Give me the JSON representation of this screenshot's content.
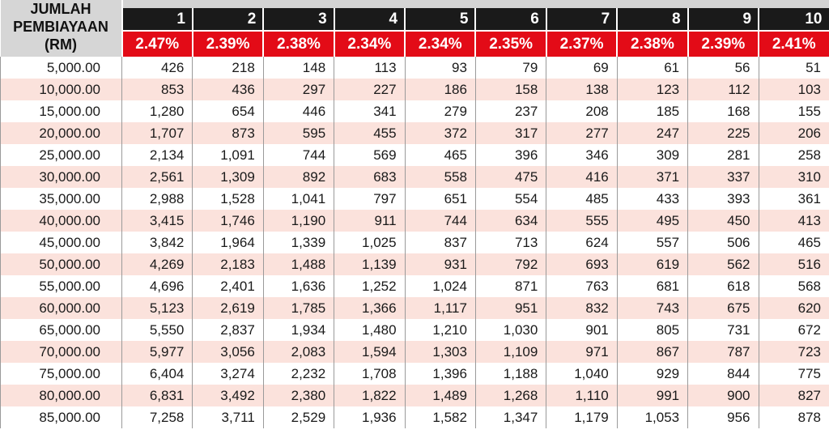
{
  "header": {
    "label_lines": [
      "JUMLAH",
      "PEMBIAYAAN",
      "(RM)"
    ],
    "years": [
      "1",
      "2",
      "3",
      "4",
      "5",
      "6",
      "7",
      "8",
      "9",
      "10"
    ],
    "rates": [
      "2.47%",
      "2.39%",
      "2.38%",
      "2.34%",
      "2.34%",
      "2.35%",
      "2.37%",
      "2.38%",
      "2.39%",
      "2.41%"
    ]
  },
  "rows": [
    {
      "amount": "5,000.00",
      "values": [
        "426",
        "218",
        "148",
        "113",
        "93",
        "79",
        "69",
        "61",
        "56",
        "51"
      ]
    },
    {
      "amount": "10,000.00",
      "values": [
        "853",
        "436",
        "297",
        "227",
        "186",
        "158",
        "138",
        "123",
        "112",
        "103"
      ]
    },
    {
      "amount": "15,000.00",
      "values": [
        "1,280",
        "654",
        "446",
        "341",
        "279",
        "237",
        "208",
        "185",
        "168",
        "155"
      ]
    },
    {
      "amount": "20,000.00",
      "values": [
        "1,707",
        "873",
        "595",
        "455",
        "372",
        "317",
        "277",
        "247",
        "225",
        "206"
      ]
    },
    {
      "amount": "25,000.00",
      "values": [
        "2,134",
        "1,091",
        "744",
        "569",
        "465",
        "396",
        "346",
        "309",
        "281",
        "258"
      ]
    },
    {
      "amount": "30,000.00",
      "values": [
        "2,561",
        "1,309",
        "892",
        "683",
        "558",
        "475",
        "416",
        "371",
        "337",
        "310"
      ]
    },
    {
      "amount": "35,000.00",
      "values": [
        "2,988",
        "1,528",
        "1,041",
        "797",
        "651",
        "554",
        "485",
        "433",
        "393",
        "361"
      ]
    },
    {
      "amount": "40,000.00",
      "values": [
        "3,415",
        "1,746",
        "1,190",
        "911",
        "744",
        "634",
        "555",
        "495",
        "450",
        "413"
      ]
    },
    {
      "amount": "45,000.00",
      "values": [
        "3,842",
        "1,964",
        "1,339",
        "1,025",
        "837",
        "713",
        "624",
        "557",
        "506",
        "465"
      ]
    },
    {
      "amount": "50,000.00",
      "values": [
        "4,269",
        "2,183",
        "1,488",
        "1,139",
        "931",
        "792",
        "693",
        "619",
        "562",
        "516"
      ]
    },
    {
      "amount": "55,000.00",
      "values": [
        "4,696",
        "2,401",
        "1,636",
        "1,252",
        "1,024",
        "871",
        "763",
        "681",
        "618",
        "568"
      ]
    },
    {
      "amount": "60,000.00",
      "values": [
        "5,123",
        "2,619",
        "1,785",
        "1,366",
        "1,117",
        "951",
        "832",
        "743",
        "675",
        "620"
      ]
    },
    {
      "amount": "65,000.00",
      "values": [
        "5,550",
        "2,837",
        "1,934",
        "1,480",
        "1,210",
        "1,030",
        "901",
        "805",
        "731",
        "672"
      ]
    },
    {
      "amount": "70,000.00",
      "values": [
        "5,977",
        "3,056",
        "2,083",
        "1,594",
        "1,303",
        "1,109",
        "971",
        "867",
        "787",
        "723"
      ]
    },
    {
      "amount": "75,000.00",
      "values": [
        "6,404",
        "3,274",
        "2,232",
        "1,708",
        "1,396",
        "1,188",
        "1,040",
        "929",
        "844",
        "775"
      ]
    },
    {
      "amount": "80,000.00",
      "values": [
        "6,831",
        "3,492",
        "2,380",
        "1,822",
        "1,489",
        "1,268",
        "1,110",
        "991",
        "900",
        "827"
      ]
    },
    {
      "amount": "85,000.00",
      "values": [
        "7,258",
        "3,711",
        "2,529",
        "1,936",
        "1,582",
        "1,347",
        "1,179",
        "1,053",
        "956",
        "878"
      ]
    }
  ],
  "colors": {
    "year_header_bg": "#1a1a1a",
    "rate_header_bg": "#e30b17",
    "stripe_bg": "#fbe2dc",
    "label_bg": "#d6d6d6"
  }
}
